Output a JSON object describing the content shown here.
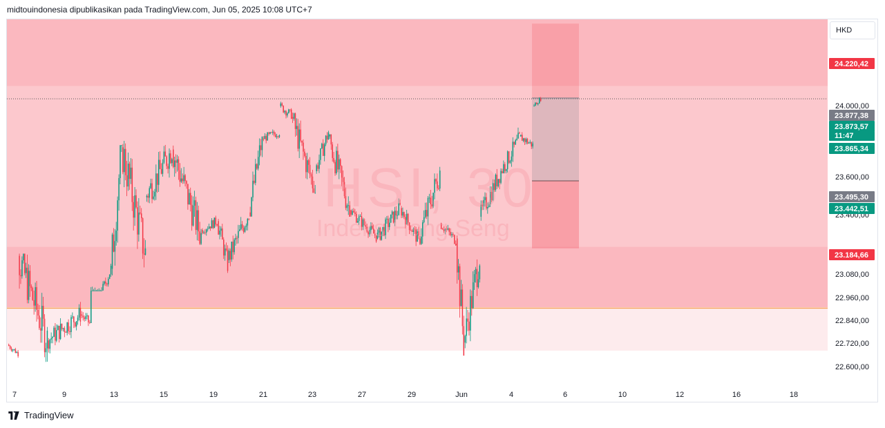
{
  "header": {
    "text": "midtouindonesia dipublikasikan pada TradingView.com, Jun 05, 2025 10:08 UTC+7"
  },
  "footer": {
    "brand": "TradingView"
  },
  "watermark": {
    "symbol": "HSI, 30",
    "name": "Indeks Hang Seng"
  },
  "currency": "HKD",
  "colors": {
    "up": "#089981",
    "down": "#f23645",
    "zone_dark": "#fbb8bf",
    "zone_light": "#fcc8cd",
    "zone_pale": "#fdebed",
    "price_up": "#089981",
    "price_grey": "#787b86",
    "price_red": "#f23645"
  },
  "price_labels": [
    {
      "text": "24.220,42",
      "kind": "red"
    },
    {
      "text": "23.877,38",
      "kind": "grey"
    },
    {
      "text": "23.873,57",
      "kind": "up"
    },
    {
      "text": "11:47",
      "kind": "up"
    },
    {
      "text": "23.865,34",
      "kind": "up"
    },
    {
      "text": "23.495,30",
      "kind": "grey"
    },
    {
      "text": "23.442,51",
      "kind": "up"
    },
    {
      "text": "23.184,66",
      "kind": "red"
    }
  ],
  "chart_data": {
    "type": "candlestick",
    "y_ticks": [
      "24.000,00",
      "23.600,00",
      "23.400,00",
      "23.080,00",
      "22.960,00",
      "22.840,00",
      "22.720,00",
      "22.600,00"
    ],
    "x_ticks": [
      "7",
      "9",
      "13",
      "15",
      "19",
      "21",
      "23",
      "27",
      "29",
      "Jun",
      "4",
      "6",
      "10",
      "12",
      "16",
      "18"
    ],
    "ylim": [
      22560,
      24240
    ],
    "zones": [
      {
        "from": 23933,
        "to": 24240,
        "tone": "dark"
      },
      {
        "from": 23192,
        "to": 23933,
        "tone": "light"
      },
      {
        "from": 22913,
        "to": 23192,
        "tone": "dark"
      },
      {
        "from": 22713,
        "to": 22913,
        "tone": "pale"
      }
    ],
    "horizontal_line": {
      "price": 22909,
      "color": "#f7a35c"
    },
    "current_price_line": 23873.57,
    "position_tool": {
      "target": 24220.42,
      "entry": 23877.38,
      "level": 23495.3,
      "stop": 23184.66
    },
    "segments": [
      {
        "from": 0,
        "to": 8,
        "start": 22740,
        "end": 22700,
        "hi": 22760,
        "lo": 22680
      },
      {
        "from": 8,
        "to": 30,
        "start": 23150,
        "end": 22760,
        "hi": 23160,
        "lo": 22620
      },
      {
        "from": 30,
        "to": 55,
        "start": 22760,
        "end": 22880,
        "hi": 22950,
        "lo": 22700
      },
      {
        "from": 55,
        "to": 62,
        "start": 22880,
        "end": 22840,
        "hi": 22900,
        "lo": 22760
      },
      {
        "from": 62,
        "to": 78,
        "start": 22840,
        "end": 23090,
        "hi": 23160,
        "lo": 22990
      },
      {
        "from": 78,
        "to": 86,
        "start": 23090,
        "end": 23650,
        "hi": 23660,
        "lo": 23030
      },
      {
        "from": 86,
        "to": 104,
        "start": 23650,
        "end": 23160,
        "hi": 23680,
        "lo": 23080
      },
      {
        "from": 104,
        "to": 124,
        "start": 23420,
        "end": 23640,
        "hi": 23690,
        "lo": 23330
      },
      {
        "from": 124,
        "to": 146,
        "start": 23640,
        "end": 23240,
        "hi": 23660,
        "lo": 23200
      },
      {
        "from": 146,
        "to": 158,
        "start": 23270,
        "end": 23310,
        "hi": 23350,
        "lo": 23220
      },
      {
        "from": 158,
        "to": 166,
        "start": 23310,
        "end": 23110,
        "hi": 23320,
        "lo": 23060
      },
      {
        "from": 166,
        "to": 182,
        "start": 23130,
        "end": 23350,
        "hi": 23380,
        "lo": 23100
      },
      {
        "from": 182,
        "to": 192,
        "start": 23350,
        "end": 23690,
        "hi": 23700,
        "lo": 23330
      },
      {
        "from": 192,
        "to": 205,
        "start": 23690,
        "end": 23720,
        "hi": 23760,
        "lo": 23650
      },
      {
        "from": 205,
        "to": 214,
        "start": 23840,
        "end": 23800,
        "hi": 23880,
        "lo": 23760
      },
      {
        "from": 214,
        "to": 232,
        "start": 23790,
        "end": 23450,
        "hi": 23810,
        "lo": 23440
      },
      {
        "from": 232,
        "to": 242,
        "start": 23540,
        "end": 23720,
        "hi": 23740,
        "lo": 23520
      },
      {
        "from": 242,
        "to": 258,
        "start": 23700,
        "end": 23360,
        "hi": 23710,
        "lo": 23330
      },
      {
        "from": 258,
        "to": 278,
        "start": 23360,
        "end": 23240,
        "hi": 23370,
        "lo": 23210
      },
      {
        "from": 278,
        "to": 296,
        "start": 23230,
        "end": 23370,
        "hi": 23420,
        "lo": 23220
      },
      {
        "from": 296,
        "to": 310,
        "start": 23370,
        "end": 23220,
        "hi": 23380,
        "lo": 23190
      },
      {
        "from": 310,
        "to": 326,
        "start": 23230,
        "end": 23540,
        "hi": 23560,
        "lo": 23200
      },
      {
        "from": 326,
        "to": 338,
        "start": 23300,
        "end": 23220,
        "hi": 23330,
        "lo": 23190
      },
      {
        "from": 338,
        "to": 344,
        "start": 23230,
        "end": 22750,
        "hi": 23250,
        "lo": 22690
      },
      {
        "from": 344,
        "to": 356,
        "start": 22750,
        "end": 23150,
        "hi": 23160,
        "lo": 22700
      },
      {
        "from": 356,
        "to": 372,
        "start": 23330,
        "end": 23540,
        "hi": 23560,
        "lo": 23310
      },
      {
        "from": 372,
        "to": 386,
        "start": 23540,
        "end": 23690,
        "hi": 23760,
        "lo": 23530
      },
      {
        "from": 386,
        "to": 396,
        "start": 23700,
        "end": 23660,
        "hi": 23720,
        "lo": 23600
      },
      {
        "from": 396,
        "to": 402,
        "start": 23840,
        "end": 23873,
        "hi": 23890,
        "lo": 23830
      }
    ]
  }
}
